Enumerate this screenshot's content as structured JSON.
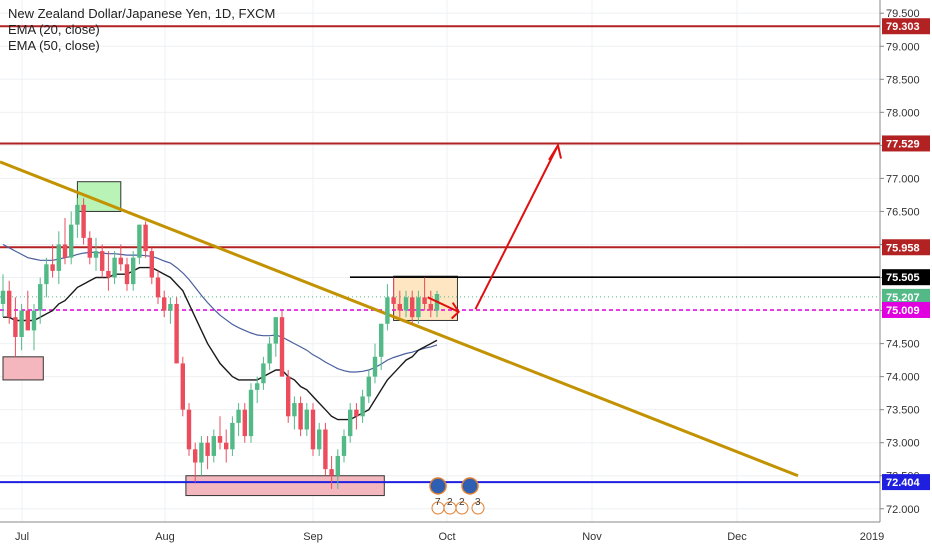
{
  "legend": {
    "title": "New Zealand Dollar/Japanese Yen, 1D, FXCM",
    "indicators": [
      "EMA (20, close)",
      "EMA (50, close)"
    ]
  },
  "colors": {
    "background": "#ffffff",
    "grid": "#eef0f3",
    "bull_candle": "#53b987",
    "bear_candle": "#eb4d5c",
    "ema20": "#1a1a1a",
    "ema50": "#4a5f9e",
    "trendline": "#c29200",
    "resistance": "#b22222",
    "support": "#1f1fe0",
    "arrow": "#e01010",
    "box_green": "#b9f3b5",
    "box_pink": "#f5b7be",
    "box_orange": "#fde6c1",
    "current_price_line": "#53b987",
    "dashed_level": "#e000e0"
  },
  "chart_data": {
    "type": "candlestick",
    "title": "New Zealand Dollar/Japanese Yen, 1D, FXCM",
    "x_tick_labels": [
      "Jul",
      "Aug",
      "Sep",
      "Oct",
      "Nov",
      "Dec",
      "2019"
    ],
    "y_tick_labels": [
      "72.000",
      "72.500",
      "73.000",
      "73.500",
      "74.000",
      "74.500",
      "75.000",
      "75.500",
      "76.000",
      "76.500",
      "77.000",
      "77.500",
      "78.000",
      "78.500",
      "79.000",
      "79.500"
    ],
    "ylim": [
      71.8,
      79.7
    ],
    "grid": true,
    "candles_ohlc": [
      [
        75.1,
        75.55,
        74.9,
        75.3
      ],
      [
        75.3,
        75.45,
        74.8,
        74.9
      ],
      [
        74.9,
        75.2,
        74.3,
        74.6
      ],
      [
        74.6,
        75.1,
        74.4,
        75.0
      ],
      [
        75.0,
        75.3,
        74.7,
        74.7
      ],
      [
        74.7,
        75.1,
        74.4,
        75.0
      ],
      [
        75.0,
        75.5,
        74.8,
        75.4
      ],
      [
        75.4,
        75.8,
        75.2,
        75.7
      ],
      [
        75.7,
        76.0,
        75.5,
        75.6
      ],
      [
        75.6,
        76.2,
        75.4,
        76.0
      ],
      [
        76.0,
        76.4,
        75.7,
        75.8
      ],
      [
        75.8,
        76.5,
        75.7,
        76.3
      ],
      [
        76.3,
        76.7,
        76.1,
        76.6
      ],
      [
        76.6,
        76.7,
        76.0,
        76.1
      ],
      [
        76.1,
        76.2,
        75.7,
        75.8
      ],
      [
        75.8,
        76.1,
        75.6,
        75.9
      ],
      [
        75.9,
        76.0,
        75.5,
        75.6
      ],
      [
        75.6,
        75.9,
        75.3,
        75.5
      ],
      [
        75.5,
        75.9,
        75.4,
        75.8
      ],
      [
        75.8,
        76.0,
        75.6,
        75.7
      ],
      [
        75.7,
        75.8,
        75.3,
        75.4
      ],
      [
        75.4,
        75.9,
        75.3,
        75.8
      ],
      [
        75.8,
        76.3,
        75.7,
        76.3
      ],
      [
        76.3,
        76.35,
        75.8,
        75.9
      ],
      [
        75.9,
        75.95,
        75.4,
        75.5
      ],
      [
        75.5,
        75.6,
        75.1,
        75.2
      ],
      [
        75.2,
        75.3,
        74.9,
        75.0
      ],
      [
        75.0,
        75.2,
        74.8,
        75.1
      ],
      [
        75.1,
        75.2,
        74.2,
        74.2
      ],
      [
        74.2,
        74.3,
        73.4,
        73.5
      ],
      [
        73.5,
        73.6,
        72.8,
        72.9
      ],
      [
        72.9,
        73.0,
        72.4,
        72.7
      ],
      [
        72.7,
        73.1,
        72.5,
        73.0
      ],
      [
        73.0,
        73.1,
        72.6,
        72.8
      ],
      [
        72.8,
        73.2,
        72.7,
        73.1
      ],
      [
        73.1,
        73.4,
        72.9,
        73.0
      ],
      [
        73.0,
        73.2,
        72.7,
        72.9
      ],
      [
        72.9,
        73.4,
        72.8,
        73.3
      ],
      [
        73.3,
        73.6,
        73.1,
        73.5
      ],
      [
        73.5,
        73.6,
        73.0,
        73.1
      ],
      [
        73.1,
        73.9,
        73.0,
        73.8
      ],
      [
        73.8,
        74.0,
        73.6,
        73.9
      ],
      [
        73.9,
        74.3,
        73.8,
        74.2
      ],
      [
        74.2,
        74.6,
        74.1,
        74.5
      ],
      [
        74.5,
        74.9,
        74.3,
        74.9
      ],
      [
        74.9,
        75.0,
        74.0,
        74.0
      ],
      [
        74.0,
        74.1,
        73.3,
        73.4
      ],
      [
        73.4,
        73.7,
        73.2,
        73.6
      ],
      [
        73.6,
        73.7,
        73.1,
        73.2
      ],
      [
        73.2,
        73.6,
        73.1,
        73.5
      ],
      [
        73.5,
        73.6,
        72.8,
        72.9
      ],
      [
        72.9,
        73.3,
        72.8,
        73.2
      ],
      [
        73.2,
        73.3,
        72.5,
        72.6
      ],
      [
        72.6,
        72.8,
        72.3,
        72.5
      ],
      [
        72.5,
        72.9,
        72.3,
        72.8
      ],
      [
        72.8,
        73.2,
        72.7,
        73.1
      ],
      [
        73.1,
        73.6,
        73.0,
        73.5
      ],
      [
        73.5,
        73.6,
        73.2,
        73.4
      ],
      [
        73.4,
        73.8,
        73.3,
        73.7
      ],
      [
        73.7,
        74.1,
        73.6,
        74.0
      ],
      [
        74.0,
        74.5,
        73.9,
        74.3
      ],
      [
        74.3,
        74.8,
        74.1,
        74.8
      ],
      [
        74.8,
        75.4,
        74.7,
        75.2
      ],
      [
        75.2,
        75.5,
        75.0,
        75.1
      ],
      [
        75.1,
        75.3,
        74.9,
        75.0
      ],
      [
        75.0,
        75.3,
        74.9,
        75.2
      ],
      [
        75.2,
        75.3,
        74.8,
        74.9
      ],
      [
        74.9,
        75.3,
        74.8,
        75.2
      ],
      [
        75.2,
        75.5,
        75.0,
        75.1
      ],
      [
        75.1,
        75.3,
        74.9,
        75.0
      ],
      [
        75.0,
        75.3,
        74.9,
        75.25
      ]
    ],
    "ema20": [
      74.9,
      74.9,
      74.85,
      74.85,
      74.85,
      74.85,
      74.9,
      74.95,
      75.0,
      75.1,
      75.15,
      75.25,
      75.35,
      75.4,
      75.45,
      75.5,
      75.5,
      75.5,
      75.55,
      75.55,
      75.55,
      75.6,
      75.65,
      75.65,
      75.65,
      75.6,
      75.55,
      75.5,
      75.4,
      75.3,
      75.1,
      74.9,
      74.7,
      74.5,
      74.35,
      74.2,
      74.1,
      74.0,
      73.95,
      73.95,
      73.95,
      73.95,
      74.0,
      74.05,
      74.1,
      74.1,
      74.0,
      73.95,
      73.85,
      73.8,
      73.7,
      73.6,
      73.5,
      73.4,
      73.35,
      73.35,
      73.35,
      73.4,
      73.45,
      73.5,
      73.65,
      73.8,
      73.95,
      74.05,
      74.15,
      74.25,
      74.3,
      74.4,
      74.45,
      74.5,
      74.55
    ],
    "ema50": [
      76.0,
      75.95,
      75.9,
      75.85,
      75.8,
      75.78,
      75.76,
      75.76,
      75.76,
      75.78,
      75.8,
      75.82,
      75.85,
      75.87,
      75.88,
      75.88,
      75.87,
      75.86,
      75.86,
      75.85,
      75.84,
      75.84,
      75.84,
      75.83,
      75.82,
      75.79,
      75.75,
      75.72,
      75.65,
      75.57,
      75.47,
      75.35,
      75.23,
      75.12,
      75.02,
      74.93,
      74.86,
      74.79,
      74.74,
      74.7,
      74.66,
      74.63,
      74.62,
      74.62,
      74.63,
      74.6,
      74.55,
      74.5,
      74.45,
      74.4,
      74.33,
      74.28,
      74.22,
      74.17,
      74.12,
      74.09,
      74.07,
      74.07,
      74.08,
      74.1,
      74.14,
      74.19,
      74.25,
      74.29,
      74.32,
      74.35,
      74.37,
      74.4,
      74.43,
      74.45,
      74.48
    ],
    "levels": [
      {
        "label": "79.303",
        "value": 79.303,
        "style": "resistance"
      },
      {
        "label": "77.529",
        "value": 77.529,
        "style": "resistance"
      },
      {
        "label": "75.958",
        "value": 75.958,
        "style": "resistance"
      },
      {
        "label": "75.505",
        "value": 75.505,
        "style": "black"
      },
      {
        "label": "75.207",
        "value": 75.207,
        "style": "current"
      },
      {
        "label": "75.009",
        "value": 75.009,
        "style": "dashed"
      },
      {
        "label": "72.404",
        "value": 72.404,
        "style": "support"
      }
    ],
    "annotations": {
      "event_markers": [
        "7",
        "2",
        "2",
        "3"
      ]
    }
  }
}
